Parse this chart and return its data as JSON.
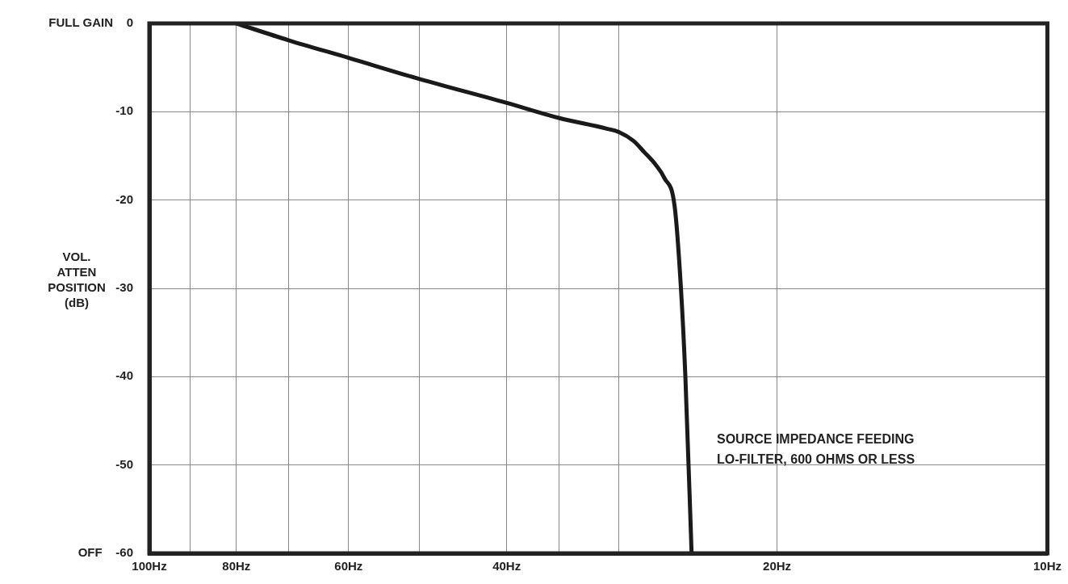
{
  "chart_data": {
    "type": "line",
    "ylabel": "VOL. ATTEN POSITION (dB)",
    "x": [
      80,
      70,
      60,
      50,
      40,
      35,
      31,
      30,
      28.9,
      28.1,
      27.3,
      26.7,
      26.0,
      25.6,
      25.3,
      24.9
    ],
    "series": [
      {
        "color": "#1a1a1a",
        "values": [
          0,
          -1.9,
          -3.9,
          -6.3,
          -9.0,
          -10.7,
          -11.9,
          -12.3,
          -13.3,
          -14.6,
          -16,
          -17.5,
          -20.8,
          -29.7,
          -40,
          -60
        ]
      }
    ],
    "log": "x",
    "xlim": [
      100,
      10
    ],
    "xticks": [
      {
        "value": 100,
        "label": "100Hz"
      },
      {
        "value": 90,
        "label": null
      },
      {
        "value": 80,
        "label": "80Hz"
      },
      {
        "value": 70,
        "label": null
      },
      {
        "value": 60,
        "label": "60Hz"
      },
      {
        "value": 50,
        "label": null
      },
      {
        "value": 40,
        "label": "40Hz"
      },
      {
        "value": 35,
        "label": null
      },
      {
        "value": 30,
        "label": null
      },
      {
        "value": 20,
        "label": "20Hz"
      },
      {
        "value": 10,
        "label": "10Hz"
      }
    ],
    "ylim": [
      -60,
      0
    ],
    "yticks": [
      {
        "value": 0,
        "label": "FULL GAIN    0"
      },
      -10,
      -20,
      -30,
      -40,
      -50,
      {
        "value": -60,
        "label": "OFF    -60"
      }
    ],
    "grid": true,
    "marker": "none",
    "line_style": "solid",
    "annotations": [
      "SOURCE IMPEDANCE FEEDING LO-FILTER, 600 OHMS OR LESS"
    ]
  }
}
